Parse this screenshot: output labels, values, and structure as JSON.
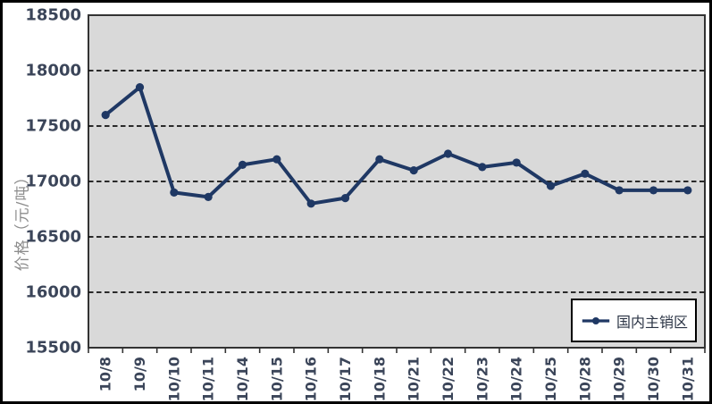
{
  "chart_data": {
    "type": "line",
    "title": "",
    "xlabel": "",
    "ylabel": "价格（元/吨）",
    "categories": [
      "10/8",
      "10/9",
      "10/10",
      "10/11",
      "10/14",
      "10/15",
      "10/16",
      "10/17",
      "10/18",
      "10/21",
      "10/22",
      "10/23",
      "10/24",
      "10/25",
      "10/28",
      "10/29",
      "10/30",
      "10/31"
    ],
    "series": [
      {
        "name": "国内主销区",
        "values": [
          17600,
          17850,
          16900,
          16860,
          17150,
          17200,
          16800,
          16850,
          17200,
          17100,
          17250,
          17130,
          17170,
          16960,
          17070,
          16920,
          16920,
          16920
        ]
      }
    ],
    "ylim": [
      15500,
      18500
    ],
    "yticks": [
      15500,
      16000,
      16500,
      17000,
      17500,
      18000,
      18500
    ],
    "grid": "horizontal-dashed",
    "legend_position": "inside-bottom-right",
    "marker": "circle",
    "colors": {
      "line": "#1F3864",
      "marker": "#1F3864",
      "plot_bg": "#D9D9D9",
      "plot_border": "#333333",
      "gridline": "#111111",
      "axis_text": "#3B4559",
      "y_title_text": "#8C8C8C",
      "legend_bg": "#FFFFFF",
      "legend_border": "#000000",
      "legend_text": "#2B3445"
    }
  }
}
